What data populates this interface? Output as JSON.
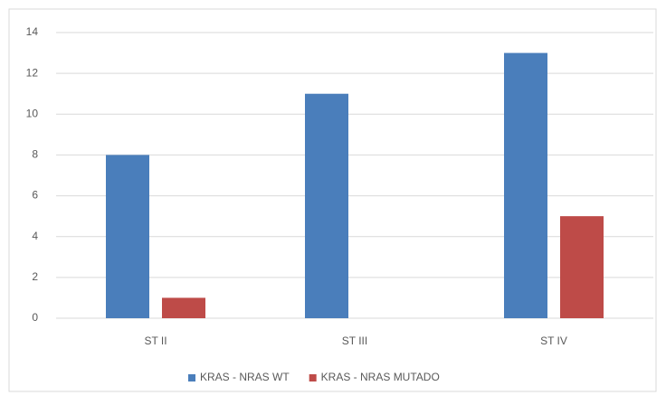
{
  "chart_data": {
    "type": "bar",
    "categories": [
      "ST II",
      "ST III",
      "ST IV"
    ],
    "series": [
      {
        "name": "KRAS - NRAS WT",
        "color": "#4a7ebb",
        "values": [
          8,
          11,
          13
        ]
      },
      {
        "name": "KRAS - NRAS MUTADO",
        "color": "#be4b48",
        "values": [
          1,
          0,
          5
        ]
      }
    ],
    "ylim": [
      0,
      14
    ],
    "yticks": [
      0,
      2,
      4,
      6,
      8,
      10,
      12,
      14
    ],
    "grid": true,
    "legend": "bottom"
  }
}
